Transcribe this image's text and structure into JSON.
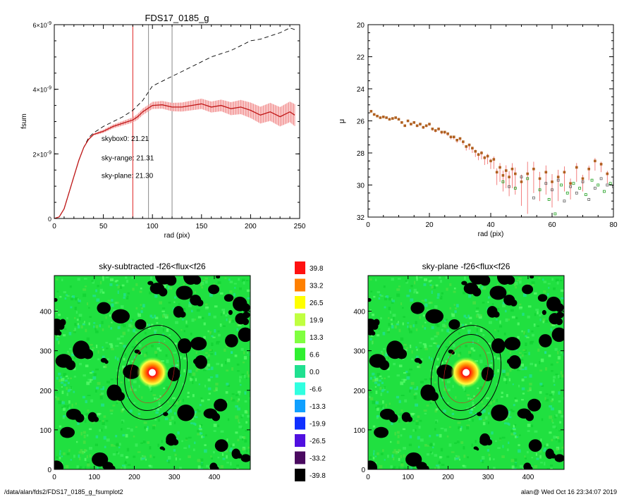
{
  "footer": {
    "left": "/data/alan/fds2/FDS17_0185_g_fsumplot2",
    "right": "alan@  Wed Oct 16 23:34:07 2019"
  },
  "chart_data": [
    {
      "type": "line",
      "title": "FDS17_0185_g",
      "xlabel": "rad (pix)",
      "ylabel": "fsum",
      "xlim": [
        0,
        250
      ],
      "ylim": [
        0,
        6e-09
      ],
      "x_ticks": [
        "0",
        "50",
        "100",
        "150",
        "200",
        "250"
      ],
      "y_ticks": [
        {
          "v": 0,
          "mant": "0",
          "exp": ""
        },
        {
          "v": 2e-09,
          "mant": "2×10",
          "exp": "-9"
        },
        {
          "v": 4e-09,
          "mant": "4×10",
          "exp": "-9"
        },
        {
          "v": 6e-09,
          "mant": "6×10",
          "exp": "-9"
        }
      ],
      "vertical_lines": [
        {
          "x": 80,
          "color": "#e02020"
        },
        {
          "x": 96,
          "color": "#888888"
        },
        {
          "x": 120,
          "color": "#888888"
        }
      ],
      "annotations": [
        {
          "text": "skybox0: 21.21",
          "color": "#000000",
          "x": 48,
          "y": 2.4e-09
        },
        {
          "text": "sky-range: 21.31",
          "color": "#e02020",
          "x": 48,
          "y": 1.8e-09
        },
        {
          "text": "sky-plane: 21.30",
          "color": "#20cc20",
          "x": 48,
          "y": 1.25e-09
        }
      ],
      "series": [
        {
          "style": "dashed",
          "color": "#000000",
          "x": [
            0,
            5,
            10,
            15,
            20,
            25,
            30,
            35,
            40,
            45,
            50,
            60,
            70,
            80,
            90,
            100,
            110,
            120,
            130,
            140,
            150,
            160,
            170,
            180,
            190,
            200,
            210,
            220,
            230,
            240,
            245
          ],
          "y": [
            0,
            5e-11,
            3e-10,
            8e-10,
            1.3e-09,
            1.8e-09,
            2.2e-09,
            2.5e-09,
            2.65e-09,
            2.75e-09,
            2.85e-09,
            3e-09,
            3.15e-09,
            3.35e-09,
            3.65e-09,
            4.1e-09,
            4.25e-09,
            4.4e-09,
            4.55e-09,
            4.7e-09,
            4.85e-09,
            5e-09,
            5.1e-09,
            5.2e-09,
            5.35e-09,
            5.5e-09,
            5.55e-09,
            5.65e-09,
            5.75e-09,
            5.9e-09,
            5.85e-09
          ]
        },
        {
          "style": "solid",
          "color": "#c01818",
          "errorbars": true,
          "error_color": "#f08080",
          "x": [
            0,
            5,
            10,
            15,
            20,
            25,
            30,
            35,
            40,
            45,
            50,
            60,
            70,
            80,
            85,
            90,
            95,
            100,
            110,
            120,
            130,
            140,
            150,
            160,
            170,
            180,
            190,
            200,
            210,
            220,
            230,
            240,
            245
          ],
          "y": [
            0,
            5e-11,
            3e-10,
            8e-10,
            1.3e-09,
            1.8e-09,
            2.2e-09,
            2.45e-09,
            2.6e-09,
            2.65e-09,
            2.7e-09,
            2.85e-09,
            2.95e-09,
            3.05e-09,
            3.15e-09,
            3.3e-09,
            3.4e-09,
            3.5e-09,
            3.52e-09,
            3.45e-09,
            3.45e-09,
            3.5e-09,
            3.55e-09,
            3.45e-09,
            3.5e-09,
            3.4e-09,
            3.45e-09,
            3.35e-09,
            3.2e-09,
            3.3e-09,
            3.15e-09,
            3.3e-09,
            3.2e-09
          ],
          "err": [
            0,
            0,
            0,
            0,
            0,
            0,
            0,
            2e-11,
            3e-11,
            4e-11,
            5e-11,
            6e-11,
            7e-11,
            8e-11,
            9e-11,
            1e-10,
            1e-10,
            1.1e-10,
            1.2e-10,
            1.3e-10,
            1.4e-10,
            1.5e-10,
            1.6e-10,
            1.7e-10,
            1.8e-10,
            2e-10,
            2.2e-10,
            2.4e-10,
            2.6e-10,
            2.8e-10,
            3e-10,
            3.2e-10,
            3.4e-10
          ]
        }
      ]
    },
    {
      "type": "scatter",
      "title": "",
      "xlabel": "rad (pix)",
      "ylabel": "μ",
      "xlim": [
        0,
        80
      ],
      "ylim": [
        32,
        20
      ],
      "x_ticks": [
        "0",
        "20",
        "40",
        "60",
        "80"
      ],
      "y_ticks": [
        "20",
        "22",
        "24",
        "26",
        "28",
        "30",
        "32"
      ],
      "series": [
        {
          "name": "",
          "color": "#b06020",
          "errorbars": true,
          "error_color": "#f06060",
          "x": [
            1,
            2,
            3,
            4,
            5,
            6,
            7,
            8,
            9,
            10,
            11,
            12,
            13,
            14,
            15,
            16,
            17,
            18,
            19,
            20,
            21,
            22,
            23,
            24,
            25,
            26,
            27,
            28,
            29,
            30,
            31,
            32,
            33,
            34,
            35,
            36,
            37,
            38,
            39,
            40,
            41,
            42,
            43,
            44,
            45,
            46,
            47,
            48,
            50,
            52,
            54,
            56,
            58,
            60,
            62,
            64,
            66,
            68,
            70,
            72,
            74,
            76,
            78
          ],
          "y": [
            25.4,
            25.6,
            25.7,
            25.8,
            25.75,
            25.8,
            25.9,
            25.85,
            25.8,
            25.9,
            26.1,
            26.3,
            26.0,
            26.2,
            26.1,
            26.3,
            26.2,
            26.4,
            26.3,
            26.2,
            26.5,
            26.6,
            26.5,
            26.7,
            26.7,
            26.8,
            27.0,
            27.0,
            27.2,
            27.1,
            27.3,
            27.6,
            27.5,
            27.7,
            27.9,
            28.1,
            28.0,
            28.3,
            28.2,
            28.5,
            28.4,
            29.2,
            28.9,
            29.4,
            29.1,
            29.5,
            29.0,
            29.3,
            29.8,
            29.3,
            29.0,
            29.6,
            29.2,
            29.8,
            29.5,
            29.2,
            29.9,
            28.9,
            29.6,
            29.0,
            28.5,
            28.7,
            29.3
          ],
          "err": [
            0.05,
            0.05,
            0.05,
            0.05,
            0.05,
            0.05,
            0.06,
            0.06,
            0.06,
            0.07,
            0.07,
            0.08,
            0.08,
            0.08,
            0.09,
            0.09,
            0.1,
            0.1,
            0.1,
            0.11,
            0.11,
            0.12,
            0.12,
            0.13,
            0.13,
            0.14,
            0.15,
            0.16,
            0.17,
            0.18,
            0.2,
            0.25,
            0.3,
            0.3,
            0.35,
            0.35,
            0.4,
            0.45,
            0.5,
            0.5,
            0.6,
            0.8,
            0.9,
            1.0,
            1.1,
            1.2,
            1.2,
            1.3,
            1.5,
            2.5,
            1.5,
            1.4,
            1.4,
            1.6,
            1.5,
            1.2,
            1.0,
            0.9,
            0.8,
            0.7,
            0.6,
            0.5,
            0.6
          ]
        },
        {
          "name": "",
          "color": "#20a020",
          "marker": "square-open",
          "x": [
            44,
            48,
            52,
            56,
            59,
            61,
            63,
            65,
            67,
            69,
            71,
            73,
            75,
            77,
            79
          ],
          "y": [
            29.8,
            30.2,
            29.6,
            30.3,
            30.9,
            31.8,
            30.0,
            30.5,
            29.9,
            30.2,
            30.6,
            29.7,
            30.0,
            30.4,
            29.9
          ]
        },
        {
          "name": "",
          "color": "#606060",
          "marker": "square-open",
          "x": [
            46,
            50,
            54,
            58,
            60,
            62,
            64,
            66,
            68,
            70,
            72,
            74,
            76,
            78,
            80
          ],
          "y": [
            30.1,
            29.5,
            30.8,
            29.9,
            30.3,
            29.7,
            31.0,
            30.1,
            30.5,
            29.8,
            30.9,
            30.2,
            29.6,
            30.0,
            30.1
          ]
        }
      ]
    },
    {
      "type": "heatmap",
      "title": "sky-subtracted -f26<flux<f26",
      "xlim": [
        0,
        490
      ],
      "ylim": [
        0,
        490
      ],
      "x_ticks": [
        "0",
        "100",
        "200",
        "300",
        "400"
      ],
      "y_ticks": [
        "0",
        "100",
        "200",
        "300",
        "400"
      ],
      "background": "#20e040",
      "source": {
        "x": 245,
        "y": 245
      }
    },
    {
      "type": "heatmap",
      "title": "sky-plane -f26<flux<f26",
      "xlim": [
        0,
        490
      ],
      "ylim": [
        0,
        490
      ],
      "x_ticks": [
        "0",
        "100",
        "200",
        "300",
        "400"
      ],
      "y_ticks": [
        "0",
        "100",
        "200",
        "300",
        "400"
      ],
      "background": "#20e040",
      "source": {
        "x": 245,
        "y": 245
      }
    },
    {
      "type": "colorbar",
      "labels": [
        "39.8",
        "33.2",
        "26.5",
        "19.9",
        "13.3",
        "6.6",
        "0.0",
        "-6.6",
        "-13.3",
        "-19.9",
        "-26.5",
        "-33.2",
        "-39.8"
      ],
      "colors": [
        "#ff1010",
        "#ff8000",
        "#ffff00",
        "#c0ff40",
        "#80ff40",
        "#30f030",
        "#20e090",
        "#30ffe0",
        "#10a0ff",
        "#1030ff",
        "#5010e0",
        "#4a0a60",
        "#000000"
      ]
    }
  ]
}
